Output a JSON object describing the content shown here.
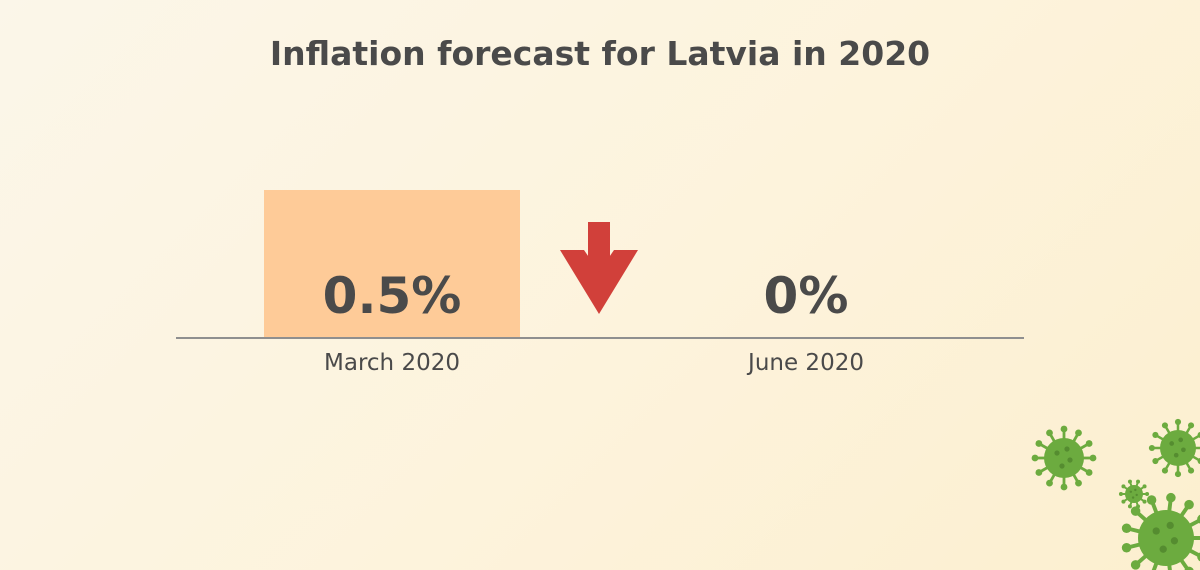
{
  "chart_data": {
    "type": "bar",
    "title": "Inflation forecast for Latvia in 2020",
    "categories": [
      "March 2020",
      "June 2020"
    ],
    "values": [
      0.5,
      0
    ],
    "value_labels": [
      "0.5%",
      "0%"
    ],
    "xlabel": "",
    "ylabel": "",
    "ylim": [
      0,
      0.5
    ],
    "grid": false,
    "legend": "none"
  },
  "colors": {
    "bar": "#fecb98",
    "arrow": "#d1403a",
    "baseline": "#8f8f8f",
    "text": "#4a4a4a",
    "virus": "#6cab3f"
  },
  "decor": {
    "arrow_icon": "down-arrow-icon",
    "virus_icon": "virus-icon"
  }
}
